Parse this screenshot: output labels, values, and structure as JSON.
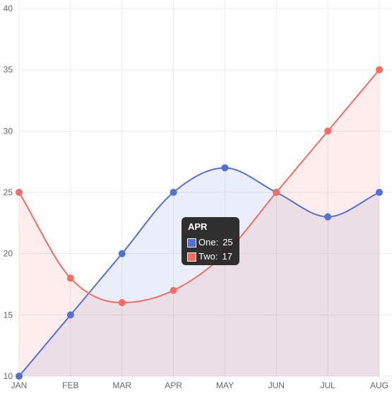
{
  "chart_data": {
    "type": "line",
    "categories": [
      "JAN",
      "FEB",
      "MAR",
      "APR",
      "MAY",
      "JUN",
      "JUL",
      "AUG"
    ],
    "series": [
      {
        "name": "One",
        "values": [
          10,
          15,
          20,
          25,
          27,
          25,
          23,
          25
        ],
        "color": "#5470d6",
        "fill": "rgba(84,112,214,0.12)"
      },
      {
        "name": "Two",
        "values": [
          25,
          18,
          16,
          17,
          20,
          25,
          30,
          35
        ],
        "color": "#f56c62",
        "fill": "rgba(245,108,98,0.12)"
      }
    ],
    "ylim": [
      10,
      40
    ],
    "yticks": [
      "10",
      "15",
      "20",
      "25",
      "30",
      "35",
      "40"
    ],
    "grid": true,
    "curve": "smooth"
  },
  "tooltip": {
    "title": "APR",
    "rows": [
      {
        "label": "One:",
        "value": "25",
        "color": "#5470d6"
      },
      {
        "label": "Two:",
        "value": "17",
        "color": "#f56c62"
      }
    ]
  },
  "colors": {
    "grid": "#ebebeb",
    "tick_label": "#666666"
  }
}
